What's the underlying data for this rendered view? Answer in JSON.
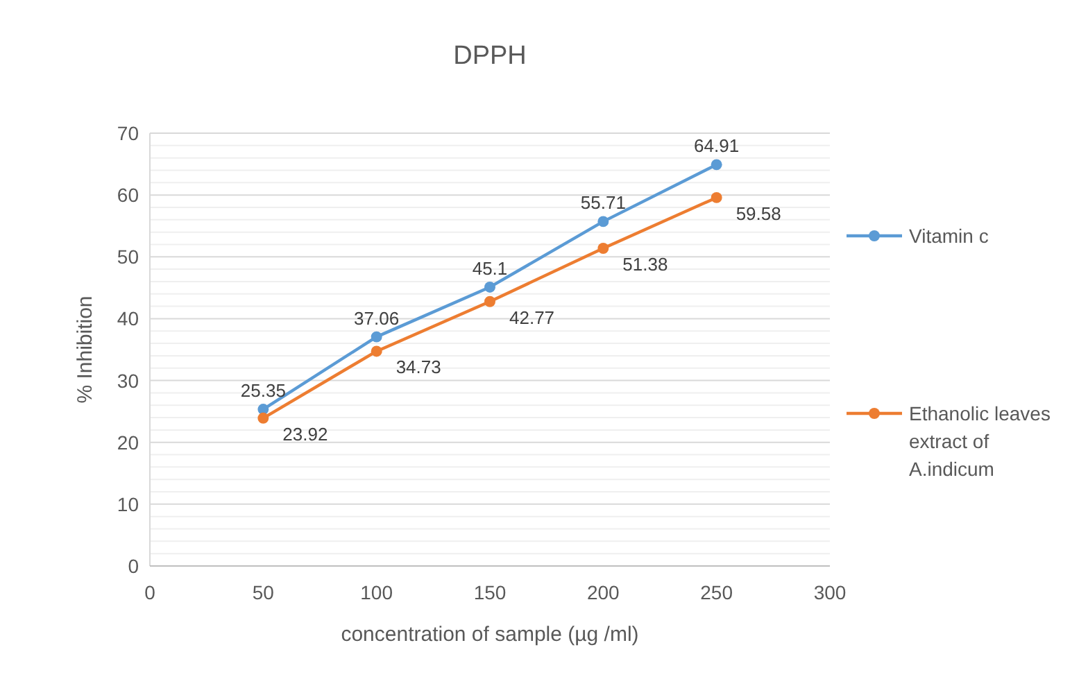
{
  "chart_data": {
    "type": "line",
    "title": "DPPH",
    "xlabel": "concentration of sample (µg /ml)",
    "ylabel": "% Inhibition",
    "x": [
      50,
      100,
      150,
      200,
      250
    ],
    "series": [
      {
        "name": "Vitamin c",
        "color": "#5b9bd5",
        "values": [
          25.35,
          37.06,
          45.1,
          55.71,
          64.91
        ]
      },
      {
        "name": "Ethanolic leaves extract of A.indicum",
        "color": "#ed7d31",
        "values": [
          23.92,
          34.73,
          42.77,
          51.38,
          59.58
        ]
      }
    ],
    "xlim": [
      0,
      300
    ],
    "xticks": [
      0,
      50,
      100,
      150,
      200,
      250,
      300
    ],
    "ylim": [
      0,
      70
    ],
    "yticks": [
      0,
      10,
      20,
      30,
      40,
      50,
      60,
      70
    ],
    "grid": "y",
    "legend": "right",
    "marker": "circle",
    "line_style": "solid",
    "data_labels": true
  }
}
